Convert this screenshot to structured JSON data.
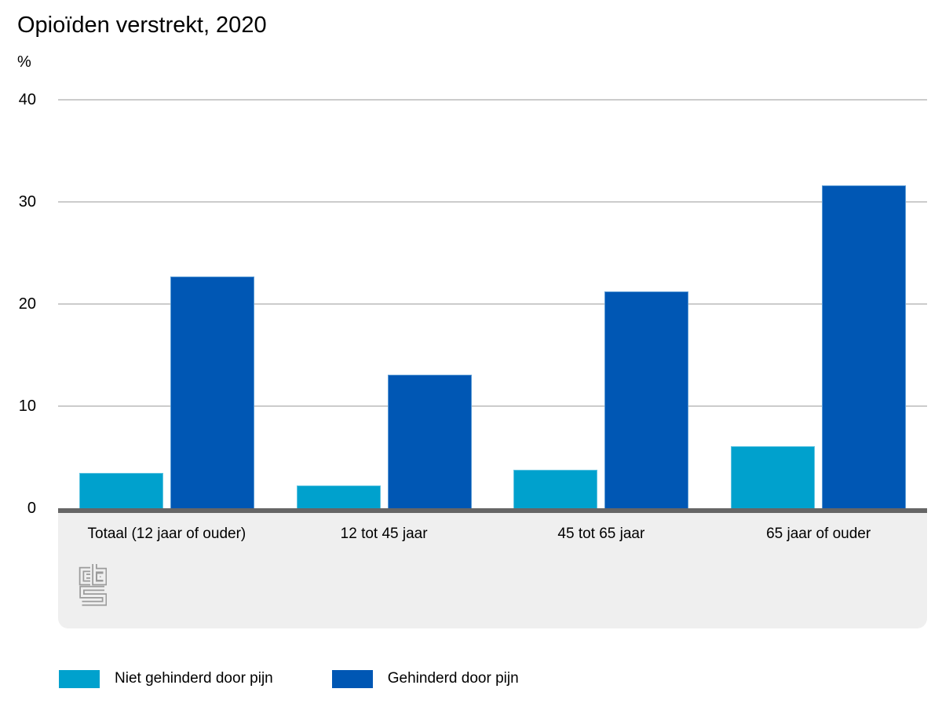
{
  "title": "Opioïden verstrekt, 2020",
  "y_axis": {
    "unit_label": "%",
    "ticks": [
      40,
      30,
      20,
      10,
      0
    ],
    "max": 40
  },
  "chart_data": {
    "type": "bar",
    "title": "Opioïden verstrekt, 2020",
    "xlabel": "",
    "ylabel": "%",
    "ylim": [
      0,
      40
    ],
    "grid": true,
    "legend_position": "bottom",
    "categories": [
      "Totaal (12 jaar of ouder)",
      "12 tot 45 jaar",
      "45 tot 65 jaar",
      "65 jaar of ouder"
    ],
    "series": [
      {
        "name": "Niet gehinderd door pijn",
        "color": "#00a1cd",
        "border_color": "#5fc4e1",
        "values": [
          3.5,
          2.2,
          3.8,
          6.1
        ]
      },
      {
        "name": "Gehinderd door pijn",
        "color": "#0057b4",
        "border_color": "#5b9bd5",
        "values": [
          22.7,
          13.1,
          21.2,
          31.6
        ]
      }
    ]
  },
  "branding": {
    "logo": "cbs-logo",
    "logo_color": "#9b9b9b"
  },
  "colors": {
    "background": "#ffffff",
    "gridline": "#cccccc",
    "baseline": "#666666",
    "category_band": "#efefef",
    "text": "#000000"
  }
}
